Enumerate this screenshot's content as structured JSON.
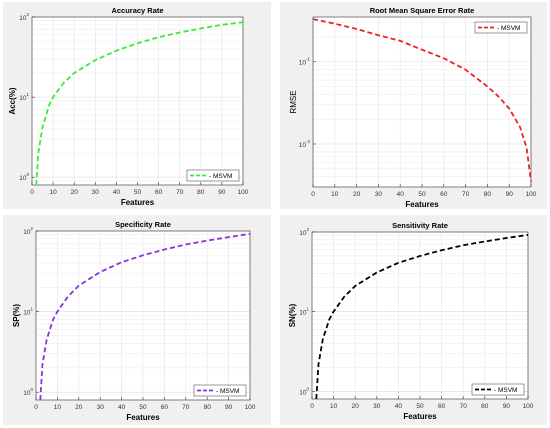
{
  "chart_data": [
    {
      "type": "line",
      "title": "Accuracy Rate",
      "xlabel": "Features",
      "ylabel": "Acc(%)",
      "yscale": "log",
      "xlim": [
        0,
        100
      ],
      "ylim": [
        0.8,
        100
      ],
      "xticks": [
        0,
        10,
        20,
        30,
        40,
        50,
        60,
        70,
        80,
        90,
        100
      ],
      "yticks": [
        {
          "v": 1,
          "exp": "0"
        },
        {
          "v": 10,
          "exp": "1"
        },
        {
          "v": 100,
          "exp": "2"
        }
      ],
      "grid": true,
      "legend_position": "bottom-right",
      "color": "#33ee33",
      "series": [
        {
          "name": "MSVM",
          "x": [
            2,
            3,
            5,
            8,
            10,
            15,
            20,
            30,
            40,
            50,
            60,
            70,
            80,
            90,
            100
          ],
          "y": [
            0.8,
            2.0,
            4.2,
            7.8,
            10,
            15,
            20,
            29,
            38,
            47,
            56,
            64,
            72,
            80,
            86
          ]
        }
      ]
    },
    {
      "type": "line",
      "title": "Root Mean Square Error Rate",
      "xlabel": "Features",
      "ylabel": "RMSE",
      "yscale": "log",
      "xlim": [
        0,
        100
      ],
      "ylim": [
        0.003,
        0.35
      ],
      "xticks": [
        0,
        10,
        20,
        30,
        40,
        50,
        60,
        70,
        80,
        90,
        100
      ],
      "yticks": [
        {
          "v": 0.01,
          "exp": "-2"
        },
        {
          "v": 0.1,
          "exp": "-1"
        }
      ],
      "grid": true,
      "legend_position": "top-right",
      "color": "#ee2222",
      "series": [
        {
          "name": "MSVM",
          "x": [
            0,
            10,
            20,
            30,
            40,
            50,
            60,
            70,
            80,
            85,
            90,
            95,
            98,
            100
          ],
          "y": [
            0.33,
            0.29,
            0.25,
            0.21,
            0.18,
            0.14,
            0.11,
            0.08,
            0.05,
            0.038,
            0.027,
            0.016,
            0.009,
            0.0035
          ]
        }
      ]
    },
    {
      "type": "line",
      "title": "Specificity Rate",
      "xlabel": "Features",
      "ylabel": "SP(%)",
      "yscale": "log",
      "xlim": [
        0,
        100
      ],
      "ylim": [
        0.8,
        100
      ],
      "xticks": [
        0,
        10,
        20,
        30,
        40,
        50,
        60,
        70,
        80,
        90,
        100
      ],
      "yticks": [
        {
          "v": 1,
          "exp": "0"
        },
        {
          "v": 10,
          "exp": "1"
        },
        {
          "v": 100,
          "exp": "2"
        }
      ],
      "grid": true,
      "legend_position": "bottom-right",
      "color": "#8833dd",
      "series": [
        {
          "name": "MSVM",
          "x": [
            2,
            3,
            5,
            8,
            10,
            15,
            20,
            30,
            40,
            50,
            60,
            70,
            80,
            90,
            100
          ],
          "y": [
            0.8,
            2.2,
            4.5,
            8,
            10,
            15.5,
            21,
            31,
            41,
            50,
            59,
            68,
            76,
            84,
            92
          ]
        }
      ]
    },
    {
      "type": "line",
      "title": "Sensitivity Rate",
      "xlabel": "Features",
      "ylabel": "SN(%)",
      "yscale": "log",
      "xlim": [
        0,
        100
      ],
      "ylim": [
        0.8,
        100
      ],
      "xticks": [
        0,
        10,
        20,
        30,
        40,
        50,
        60,
        70,
        80,
        90,
        100
      ],
      "yticks": [
        {
          "v": 1,
          "exp": "0"
        },
        {
          "v": 10,
          "exp": "1"
        },
        {
          "v": 100,
          "exp": "2"
        }
      ],
      "grid": true,
      "legend_position": "bottom-right",
      "color": "#000000",
      "series": [
        {
          "name": "MSVM",
          "x": [
            2,
            3,
            5,
            8,
            10,
            15,
            20,
            30,
            40,
            50,
            60,
            70,
            80,
            90,
            100
          ],
          "y": [
            0.8,
            2.2,
            4.5,
            8,
            10,
            15.5,
            21,
            31,
            41,
            50,
            59,
            68,
            76,
            84,
            92
          ]
        }
      ]
    }
  ]
}
